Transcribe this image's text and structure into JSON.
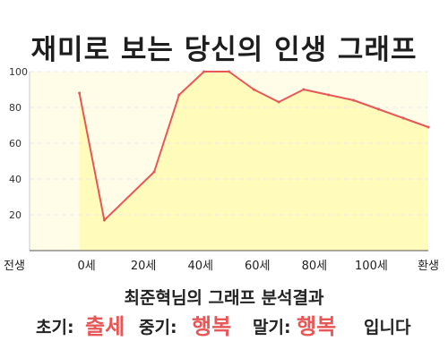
{
  "title": "재미로 보는 당신의 인생 그래프",
  "chart_data": {
    "type": "area",
    "x": [
      -5,
      0,
      10,
      15,
      20,
      25,
      30,
      35,
      40,
      45,
      50,
      55,
      60,
      65
    ],
    "y": [
      88,
      17,
      44,
      87,
      100,
      100,
      90,
      83,
      90,
      87,
      84,
      79,
      74,
      69
    ],
    "x_domain": [
      -15,
      65
    ],
    "xtick_labels": [
      "전생",
      "0세",
      "20세",
      "40세",
      "60세",
      "80세",
      "100세",
      "환생"
    ],
    "yticks": [
      20,
      40,
      60,
      80,
      100
    ],
    "ylim": [
      0,
      100
    ],
    "grid": true,
    "line_color": "#e85757",
    "fill_color": "#fffbbb",
    "plot_background": "#fffde8"
  },
  "result": {
    "heading": "최준혁님의 그래프 분석결과",
    "early_label": "초기:",
    "early_value": "출세",
    "middle_label": "중기:",
    "middle_value": "행복",
    "late_label": "말기:",
    "late_value": "행복",
    "ending": "입니다"
  }
}
